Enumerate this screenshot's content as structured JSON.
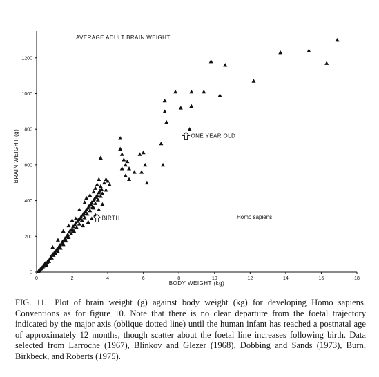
{
  "caption": {
    "label": "FIG. 11.",
    "text": "Plot of brain weight (g) against body weight (kg) for developing Homo sapiens. Conventions as for figure 10. Note that there is no clear departure from the foetal trajectory indicated by the major axis (oblique dotted line) until the human infant has reached a postnatal age of approximately 12 months, though scatter about the foetal line increases following birth. Data selected from Larroche (1967), Blinkov and Glezer (1968), Dobbing and Sands (1973), Burn, Birkbeck, and Roberts (1975)."
  },
  "chart_data": {
    "type": "scatter",
    "title": "AVERAGE ADULT BRAIN WEIGHT",
    "xlabel": "BODY WEIGHT (kg)",
    "ylabel": "BRAIN WEIGHT (g)",
    "xlim": [
      0,
      18
    ],
    "ylim": [
      0,
      1350
    ],
    "x_ticks": [
      0,
      2,
      4,
      6,
      8,
      10,
      12,
      14,
      16,
      18
    ],
    "y_ticks": [
      0,
      200,
      400,
      600,
      800,
      1000,
      1200
    ],
    "marker": "triangle",
    "species_label": "Homo sapiens",
    "annotations": [
      {
        "text": "BIRTH",
        "x": 3.4,
        "y": 300
      },
      {
        "text": "ONE YEAR OLD",
        "x": 8.4,
        "y": 760
      }
    ],
    "points": [
      [
        0.1,
        5
      ],
      [
        0.15,
        10
      ],
      [
        0.2,
        15
      ],
      [
        0.25,
        20
      ],
      [
        0.3,
        25
      ],
      [
        0.35,
        30
      ],
      [
        0.4,
        35
      ],
      [
        0.45,
        45
      ],
      [
        0.5,
        50
      ],
      [
        0.55,
        40
      ],
      [
        0.6,
        55
      ],
      [
        0.65,
        65
      ],
      [
        0.7,
        60
      ],
      [
        0.75,
        75
      ],
      [
        0.8,
        85
      ],
      [
        0.85,
        80
      ],
      [
        0.9,
        100
      ],
      [
        0.95,
        95
      ],
      [
        1.0,
        110
      ],
      [
        1.05,
        105
      ],
      [
        1.1,
        120
      ],
      [
        1.15,
        130
      ],
      [
        1.2,
        115
      ],
      [
        1.25,
        140
      ],
      [
        1.3,
        150
      ],
      [
        1.35,
        135
      ],
      [
        1.4,
        160
      ],
      [
        1.45,
        170
      ],
      [
        1.5,
        155
      ],
      [
        1.55,
        180
      ],
      [
        1.6,
        190
      ],
      [
        1.65,
        175
      ],
      [
        1.7,
        200
      ],
      [
        1.75,
        210
      ],
      [
        1.8,
        195
      ],
      [
        1.85,
        225
      ],
      [
        1.9,
        235
      ],
      [
        1.95,
        215
      ],
      [
        2.0,
        240
      ],
      [
        2.05,
        255
      ],
      [
        2.1,
        230
      ],
      [
        2.15,
        265
      ],
      [
        2.2,
        275
      ],
      [
        2.25,
        250
      ],
      [
        2.3,
        285
      ],
      [
        2.35,
        295
      ],
      [
        2.4,
        270
      ],
      [
        2.45,
        300
      ],
      [
        2.5,
        310
      ],
      [
        2.55,
        290
      ],
      [
        2.6,
        320
      ],
      [
        2.65,
        330
      ],
      [
        2.7,
        305
      ],
      [
        2.75,
        340
      ],
      [
        2.8,
        350
      ],
      [
        2.85,
        325
      ],
      [
        2.9,
        360
      ],
      [
        2.95,
        370
      ],
      [
        3.0,
        345
      ],
      [
        3.05,
        380
      ],
      [
        3.1,
        390
      ],
      [
        3.15,
        365
      ],
      [
        3.2,
        400
      ],
      [
        3.25,
        410
      ],
      [
        3.3,
        385
      ],
      [
        3.35,
        420
      ],
      [
        3.4,
        430
      ],
      [
        3.45,
        405
      ],
      [
        3.5,
        445
      ],
      [
        3.55,
        455
      ],
      [
        3.6,
        425
      ],
      [
        3.65,
        465
      ],
      [
        3.7,
        440
      ],
      [
        3.3,
        470
      ],
      [
        3.4,
        490
      ],
      [
        3.5,
        520
      ],
      [
        3.2,
        450
      ],
      [
        3.0,
        430
      ],
      [
        2.8,
        415
      ],
      [
        3.6,
        480
      ],
      [
        3.8,
        500
      ],
      [
        3.9,
        520
      ],
      [
        4.0,
        510
      ],
      [
        4.1,
        490
      ],
      [
        3.7,
        380
      ],
      [
        3.9,
        460
      ],
      [
        2.6,
        260
      ],
      [
        2.9,
        280
      ],
      [
        3.1,
        300
      ],
      [
        3.3,
        320
      ],
      [
        1.5,
        230
      ],
      [
        1.8,
        260
      ],
      [
        2.2,
        300
      ],
      [
        2.0,
        290
      ],
      [
        1.2,
        180
      ],
      [
        0.9,
        140
      ],
      [
        2.4,
        350
      ],
      [
        2.7,
        390
      ],
      [
        3.2,
        360
      ],
      [
        3.5,
        350
      ],
      [
        3.6,
        640
      ],
      [
        4.7,
        750
      ],
      [
        4.7,
        690
      ],
      [
        4.8,
        660
      ],
      [
        4.9,
        630
      ],
      [
        5.0,
        600
      ],
      [
        4.8,
        580
      ],
      [
        5.1,
        620
      ],
      [
        5.0,
        540
      ],
      [
        5.2,
        520
      ],
      [
        5.5,
        560
      ],
      [
        5.2,
        580
      ],
      [
        5.8,
        660
      ],
      [
        6.0,
        670
      ],
      [
        5.9,
        560
      ],
      [
        6.1,
        600
      ],
      [
        6.2,
        500
      ],
      [
        7.0,
        720
      ],
      [
        7.1,
        600
      ],
      [
        7.2,
        900
      ],
      [
        7.2,
        960
      ],
      [
        7.3,
        840
      ],
      [
        7.8,
        1010
      ],
      [
        8.1,
        920
      ],
      [
        8.6,
        800
      ],
      [
        8.7,
        930
      ],
      [
        8.7,
        1010
      ],
      [
        9.4,
        1010
      ],
      [
        9.8,
        1180
      ],
      [
        10.3,
        990
      ],
      [
        10.6,
        1160
      ],
      [
        12.2,
        1070
      ],
      [
        13.7,
        1230
      ],
      [
        15.3,
        1240
      ],
      [
        16.3,
        1170
      ],
      [
        16.9,
        1300
      ]
    ]
  }
}
